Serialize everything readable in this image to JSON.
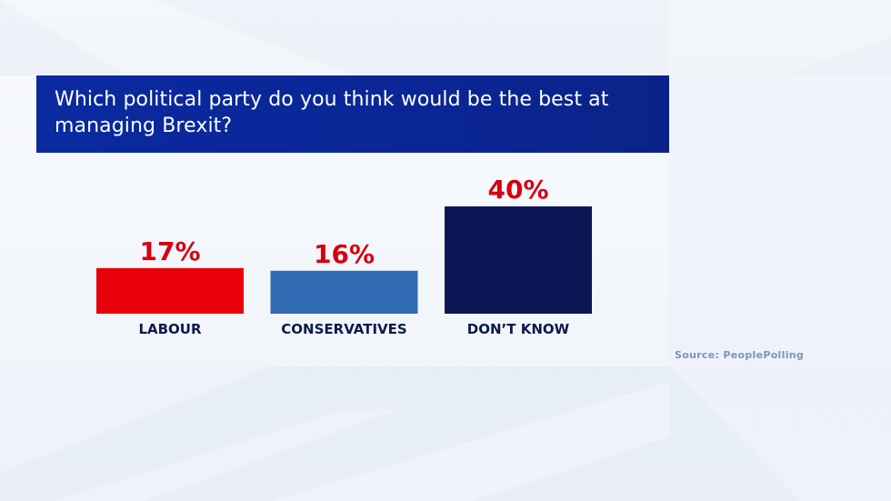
{
  "title": "Which political party do you think would be the best at managing Brexit?",
  "source": "Source: PeoplePolling",
  "colors": {
    "banner": "#0a2696",
    "value_label": "#d7000f",
    "category_label": "#0b1a4a"
  },
  "chart_data": {
    "type": "bar",
    "title": "Which political party do you think would be the best at managing Brexit?",
    "categories": [
      "LABOUR",
      "CONSERVATIVES",
      "DON’T KNOW"
    ],
    "values": [
      17,
      16,
      40
    ],
    "value_labels": [
      "17%",
      "16%",
      "40%"
    ],
    "bar_colors": [
      "#e8000b",
      "#306bb3",
      "#0a1754"
    ],
    "xlabel": "",
    "ylabel": "",
    "grid": false,
    "legend": "none"
  }
}
